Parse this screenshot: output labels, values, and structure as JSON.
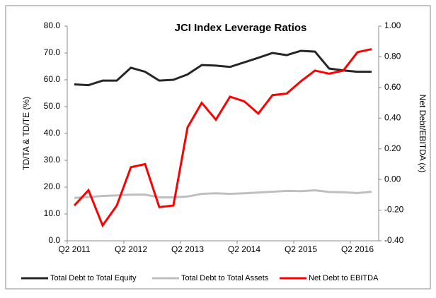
{
  "chart_data": {
    "type": "line",
    "title": "JCI Index Leverage Ratios",
    "y_label": "TD/TA & TD/TE (%)",
    "y2_label": "Net Debt/EBITDA (x)",
    "categories": [
      "Q2 2011",
      null,
      null,
      null,
      "Q2 2012",
      null,
      null,
      null,
      "Q2 2013",
      null,
      null,
      null,
      "Q2 2014",
      null,
      null,
      null,
      "Q2 2015",
      null,
      null,
      null,
      "Q2 2016",
      null
    ],
    "series": [
      {
        "name": "Total Debt to Total Equity",
        "color": "#262626",
        "values": [
          58.3,
          58,
          59.7,
          59.7,
          64.5,
          63,
          59.7,
          60,
          62,
          65.5,
          65.3,
          64.8,
          66.5,
          68.2,
          70,
          69.2,
          70.8,
          70.5,
          64.2,
          63.5,
          63,
          63
        ]
      },
      {
        "name": "Total Debt to Total Assets",
        "color": "#bfbfbf",
        "values": [
          16,
          16.3,
          16.7,
          16.9,
          17.2,
          17.2,
          16.2,
          16.2,
          16.5,
          17.5,
          17.7,
          17.5,
          17.7,
          18,
          18.3,
          18.6,
          18.5,
          18.8,
          18.2,
          18.1,
          17.8,
          18.3
        ]
      },
      {
        "name": "Net Debt to EBITDA",
        "color": "#ff0000",
        "axis": "y2",
        "values": [
          -0.17,
          -0.07,
          -0.3,
          -0.17,
          0.08,
          0.1,
          -0.18,
          -0.17,
          0.34,
          0.5,
          0.39,
          0.54,
          0.51,
          0.43,
          0.55,
          0.56,
          0.64,
          0.71,
          0.69,
          0.71,
          0.83,
          0.85
        ]
      }
    ],
    "ylim": [
      0,
      80
    ],
    "yticks": [
      {
        "value": 0,
        "label": "0.0"
      },
      {
        "value": 10,
        "label": "10.0"
      },
      {
        "value": 20,
        "label": "20.0"
      },
      {
        "value": 30,
        "label": "30.0"
      },
      {
        "value": 40,
        "label": "40.0"
      },
      {
        "value": 50,
        "label": "50.0"
      },
      {
        "value": 60,
        "label": "60.0"
      },
      {
        "value": 70,
        "label": "70.0"
      },
      {
        "value": 80,
        "label": "80.0"
      }
    ],
    "y2lim": [
      -0.4,
      1
    ],
    "y2ticks": [
      {
        "value": -0.4,
        "label": "-0.40"
      },
      {
        "value": -0.2,
        "label": "-0.20"
      },
      {
        "value": 0,
        "label": "0.00"
      },
      {
        "value": 0.2,
        "label": "0.20"
      },
      {
        "value": 0.4,
        "label": "0.40"
      },
      {
        "value": 0.6,
        "label": "0.60"
      },
      {
        "value": 0.8,
        "label": "0.80"
      },
      {
        "value": 1,
        "label": "1.00"
      }
    ],
    "legend": "bottom"
  }
}
